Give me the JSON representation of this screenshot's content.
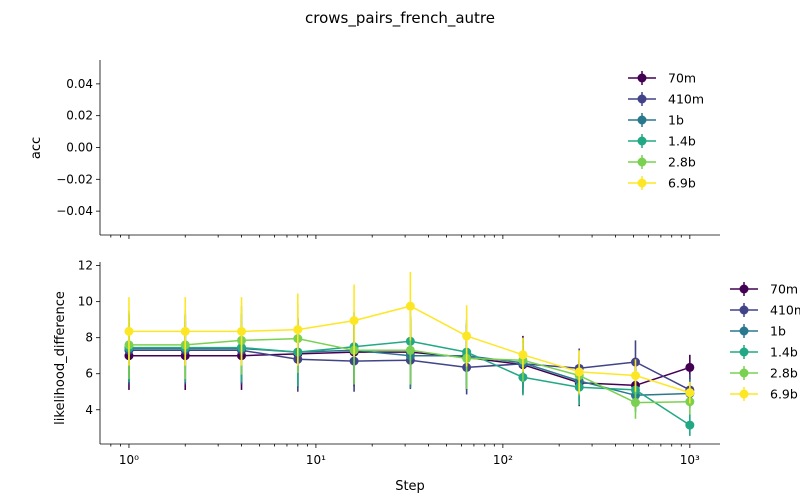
{
  "suptitle": "crows_pairs_french_autre",
  "colors": {
    "70m": "#440154",
    "410m": "#414487",
    "1b": "#2a788e",
    "1.4b": "#22a884",
    "2.8b": "#7ad151",
    "6.9b": "#fde725"
  },
  "chart_data": [
    {
      "type": "line",
      "title": "",
      "xlabel": "",
      "ylabel": "acc",
      "xscale": "log",
      "xlim": [
        0.7,
        1450
      ],
      "ylim": [
        -0.055,
        0.055
      ],
      "yticks": [
        "0.04",
        "0.02",
        "0.00",
        "−0.02",
        "−0.04"
      ],
      "ytick_values": [
        0.04,
        0.02,
        0.0,
        -0.02,
        -0.04
      ],
      "legend": "top-right",
      "series": [
        {
          "name": "70m",
          "x": [],
          "y": []
        },
        {
          "name": "410m",
          "x": [],
          "y": []
        },
        {
          "name": "1b",
          "x": [],
          "y": []
        },
        {
          "name": "1.4b",
          "x": [],
          "y": []
        },
        {
          "name": "2.8b",
          "x": [],
          "y": []
        },
        {
          "name": "6.9b",
          "x": [],
          "y": []
        }
      ]
    },
    {
      "type": "line",
      "title": "",
      "xlabel": "Step",
      "ylabel": "likelihood_difference",
      "xscale": "log",
      "xlim": [
        0.7,
        1450
      ],
      "ylim": [
        2.1,
        12.2
      ],
      "yticks": [
        "12",
        "10",
        "8",
        "6",
        "4"
      ],
      "ytick_values": [
        12,
        10,
        8,
        6,
        4
      ],
      "xtick_labels": [
        "10⁰",
        "10¹",
        "10²",
        "10³"
      ],
      "xtick_values": [
        1,
        10,
        100,
        1000
      ],
      "legend": "outside-right",
      "series": [
        {
          "name": "70m",
          "x": [
            1,
            2,
            4,
            8,
            16,
            32,
            64,
            128,
            256,
            512,
            1000
          ],
          "y": [
            7.0,
            7.0,
            7.0,
            7.1,
            7.2,
            7.2,
            6.9,
            6.5,
            5.5,
            5.35,
            6.35
          ],
          "err": [
            1.9,
            1.9,
            1.9,
            1.9,
            1.9,
            1.9,
            1.8,
            1.6,
            1.3,
            1.1,
            0.7
          ]
        },
        {
          "name": "410m",
          "x": [
            1,
            2,
            4,
            8,
            16,
            32,
            64,
            128,
            256,
            512,
            1000
          ],
          "y": [
            7.3,
            7.3,
            7.3,
            6.8,
            6.7,
            6.75,
            6.35,
            6.55,
            6.3,
            6.65,
            5.1
          ],
          "err": [
            1.9,
            1.9,
            1.9,
            1.8,
            1.7,
            1.6,
            1.5,
            1.3,
            1.1,
            1.2,
            0.9
          ]
        },
        {
          "name": "1b",
          "x": [
            1,
            2,
            4,
            8,
            16,
            32,
            64,
            128,
            256,
            512,
            1000
          ],
          "y": [
            7.4,
            7.4,
            7.4,
            7.2,
            7.3,
            7.0,
            7.0,
            6.6,
            5.6,
            4.8,
            4.9
          ],
          "err": [
            1.9,
            1.9,
            1.9,
            1.9,
            1.9,
            1.8,
            1.8,
            1.4,
            1.1,
            0.9,
            0.8
          ]
        },
        {
          "name": "1.4b",
          "x": [
            1,
            2,
            4,
            8,
            16,
            32,
            64,
            128,
            256,
            512,
            1000
          ],
          "y": [
            7.45,
            7.45,
            7.45,
            7.2,
            7.5,
            7.8,
            7.2,
            5.8,
            5.25,
            5.1,
            3.15
          ],
          "err": [
            1.9,
            1.9,
            1.9,
            1.9,
            1.9,
            1.9,
            1.8,
            1.0,
            1.0,
            0.8,
            0.6
          ]
        },
        {
          "name": "2.8b",
          "x": [
            1,
            2,
            4,
            8,
            16,
            32,
            64,
            128,
            256,
            512,
            1000
          ],
          "y": [
            7.6,
            7.6,
            7.85,
            7.95,
            7.3,
            7.3,
            6.85,
            6.75,
            5.9,
            4.4,
            4.45
          ],
          "err": [
            1.9,
            1.9,
            1.9,
            1.9,
            1.9,
            1.9,
            1.7,
            1.2,
            1.1,
            0.9,
            0.7
          ]
        },
        {
          "name": "6.9b",
          "x": [
            1,
            2,
            4,
            8,
            16,
            32,
            64,
            128,
            256,
            512,
            1000
          ],
          "y": [
            8.35,
            8.35,
            8.35,
            8.45,
            8.95,
            9.75,
            8.1,
            7.05,
            6.1,
            5.9,
            4.95
          ],
          "err": [
            1.9,
            1.9,
            1.9,
            2.0,
            2.0,
            1.9,
            1.7,
            0.95,
            1.2,
            0.9,
            0.6
          ]
        }
      ]
    }
  ]
}
